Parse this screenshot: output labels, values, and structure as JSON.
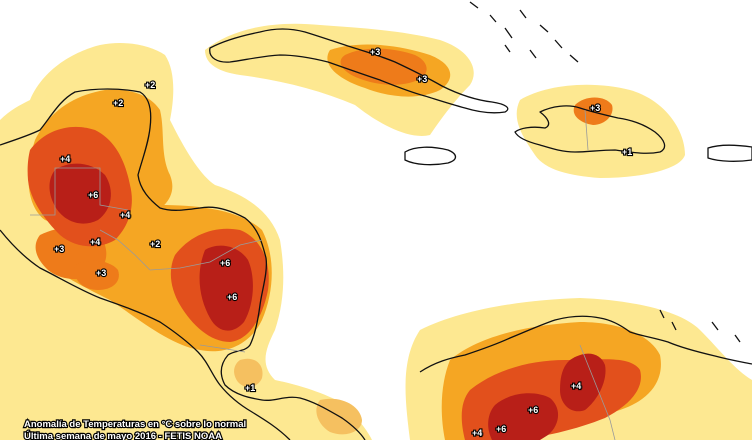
{
  "colors": {
    "sea": "#ffffff",
    "anomaly_1": "#fde891",
    "anomaly_2": "#f5a623",
    "anomaly_3": "#ee7b1a",
    "anomaly_4": "#e2501c",
    "anomaly_6": "#b81f18",
    "anomaly_pale": "#f5c060",
    "coast": "#111111",
    "border": "#9a9a9a"
  },
  "labels": {
    "yucatan_2": "+2",
    "yucatan_north_2": "+2",
    "cuba_west_3": "+3",
    "cuba_east_3": "+3",
    "hispaniola_3": "+3",
    "hispaniola_1": "+1",
    "mexico_4": "+4",
    "guatemala_6": "+6",
    "belize_4": "+4",
    "honduras_2": "+2",
    "guatemala_3": "+3",
    "guatemala_4": "+4",
    "salvador_3": "+3",
    "nicaragua_6a": "+6",
    "nicaragua_6b": "+6",
    "costa_rica_1": "+1",
    "colombia_4a": "+4",
    "colombia_6a": "+6",
    "colombia_6b": "+6",
    "colombia_4b": "+4"
  },
  "caption": {
    "line1": "Anomalía de Temperaturas en °C sobre lo normal",
    "line2": "Última semana de mayo 2016 - FETIS NOAA"
  }
}
